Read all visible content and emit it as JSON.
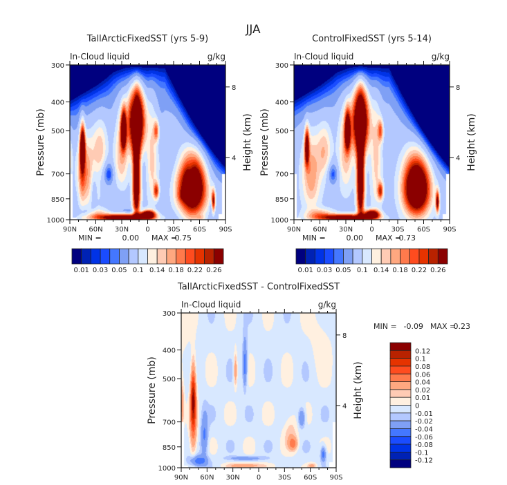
{
  "figure": {
    "title": "JJA"
  },
  "stat_labels": {
    "min": "MIN =",
    "max": "MAX ="
  },
  "chart_data": [
    {
      "type": "contour",
      "title": "TallArcticFixedSST (yrs 5-9)",
      "left_label": "In-Cloud liquid",
      "units": "g/kg",
      "ylabel": "Pressure (mb)",
      "y2label": "Height (km)",
      "x_ticks": [
        "90N",
        "60N",
        "30N",
        "0",
        "30S",
        "60S",
        "90S"
      ],
      "y_ticks": [
        300,
        400,
        500,
        700,
        850,
        1000
      ],
      "y2_ticks": [
        8,
        4
      ],
      "ylim": [
        1000,
        300
      ],
      "yscale": "log",
      "stats": {
        "min": "0.00",
        "max": "0.75"
      },
      "colorbar": {
        "orientation": "horizontal",
        "labels": [
          "0.01",
          "0.03",
          "0.05",
          "0.1",
          "0.14",
          "0.18",
          "0.22",
          "0.26"
        ]
      }
    },
    {
      "type": "contour",
      "title": "ControlFixedSST (yrs 5-14)",
      "left_label": "In-Cloud liquid",
      "units": "g/kg",
      "ylabel": "Pressure (mb)",
      "y2label": "Height (km)",
      "x_ticks": [
        "90N",
        "60N",
        "30N",
        "0",
        "30S",
        "60S",
        "90S"
      ],
      "y_ticks": [
        300,
        400,
        500,
        700,
        850,
        1000
      ],
      "y2_ticks": [
        8,
        4
      ],
      "ylim": [
        1000,
        300
      ],
      "yscale": "log",
      "stats": {
        "min": "0.00",
        "max": "0.73"
      },
      "colorbar": {
        "orientation": "horizontal",
        "labels": [
          "0.01",
          "0.03",
          "0.05",
          "0.1",
          "0.14",
          "0.18",
          "0.22",
          "0.26"
        ]
      }
    },
    {
      "type": "contour",
      "title": "TallArcticFixedSST - ControlFixedSST",
      "left_label": "In-Cloud liquid",
      "units": "g/kg",
      "ylabel": "Pressure (mb)",
      "y2label": "Height (km)",
      "x_ticks": [
        "90N",
        "60N",
        "30N",
        "0",
        "30S",
        "60S",
        "90S"
      ],
      "y_ticks": [
        300,
        400,
        500,
        700,
        850,
        1000
      ],
      "y2_ticks": [
        8,
        4
      ],
      "ylim": [
        1000,
        300
      ],
      "yscale": "log",
      "stats": {
        "min": "-0.09",
        "max": "0.23"
      },
      "colorbar": {
        "orientation": "vertical",
        "labels": [
          "0.12",
          "0.1",
          "0.08",
          "0.06",
          "0.04",
          "0.02",
          "0.01",
          "0",
          "-0.01",
          "-0.02",
          "-0.04",
          "-0.06",
          "-0.08",
          "-0.1",
          "-0.12"
        ]
      }
    }
  ],
  "palette": [
    "#00007f",
    "#0022b4",
    "#0033e6",
    "#1a4cff",
    "#4477ff",
    "#7fa0f5",
    "#b3c8ff",
    "#d8e8ff",
    "#fff0e0",
    "#ffcbb4",
    "#ffa880",
    "#ff7a4c",
    "#ff4c1f",
    "#e63300",
    "#b82200",
    "#8b0000"
  ]
}
